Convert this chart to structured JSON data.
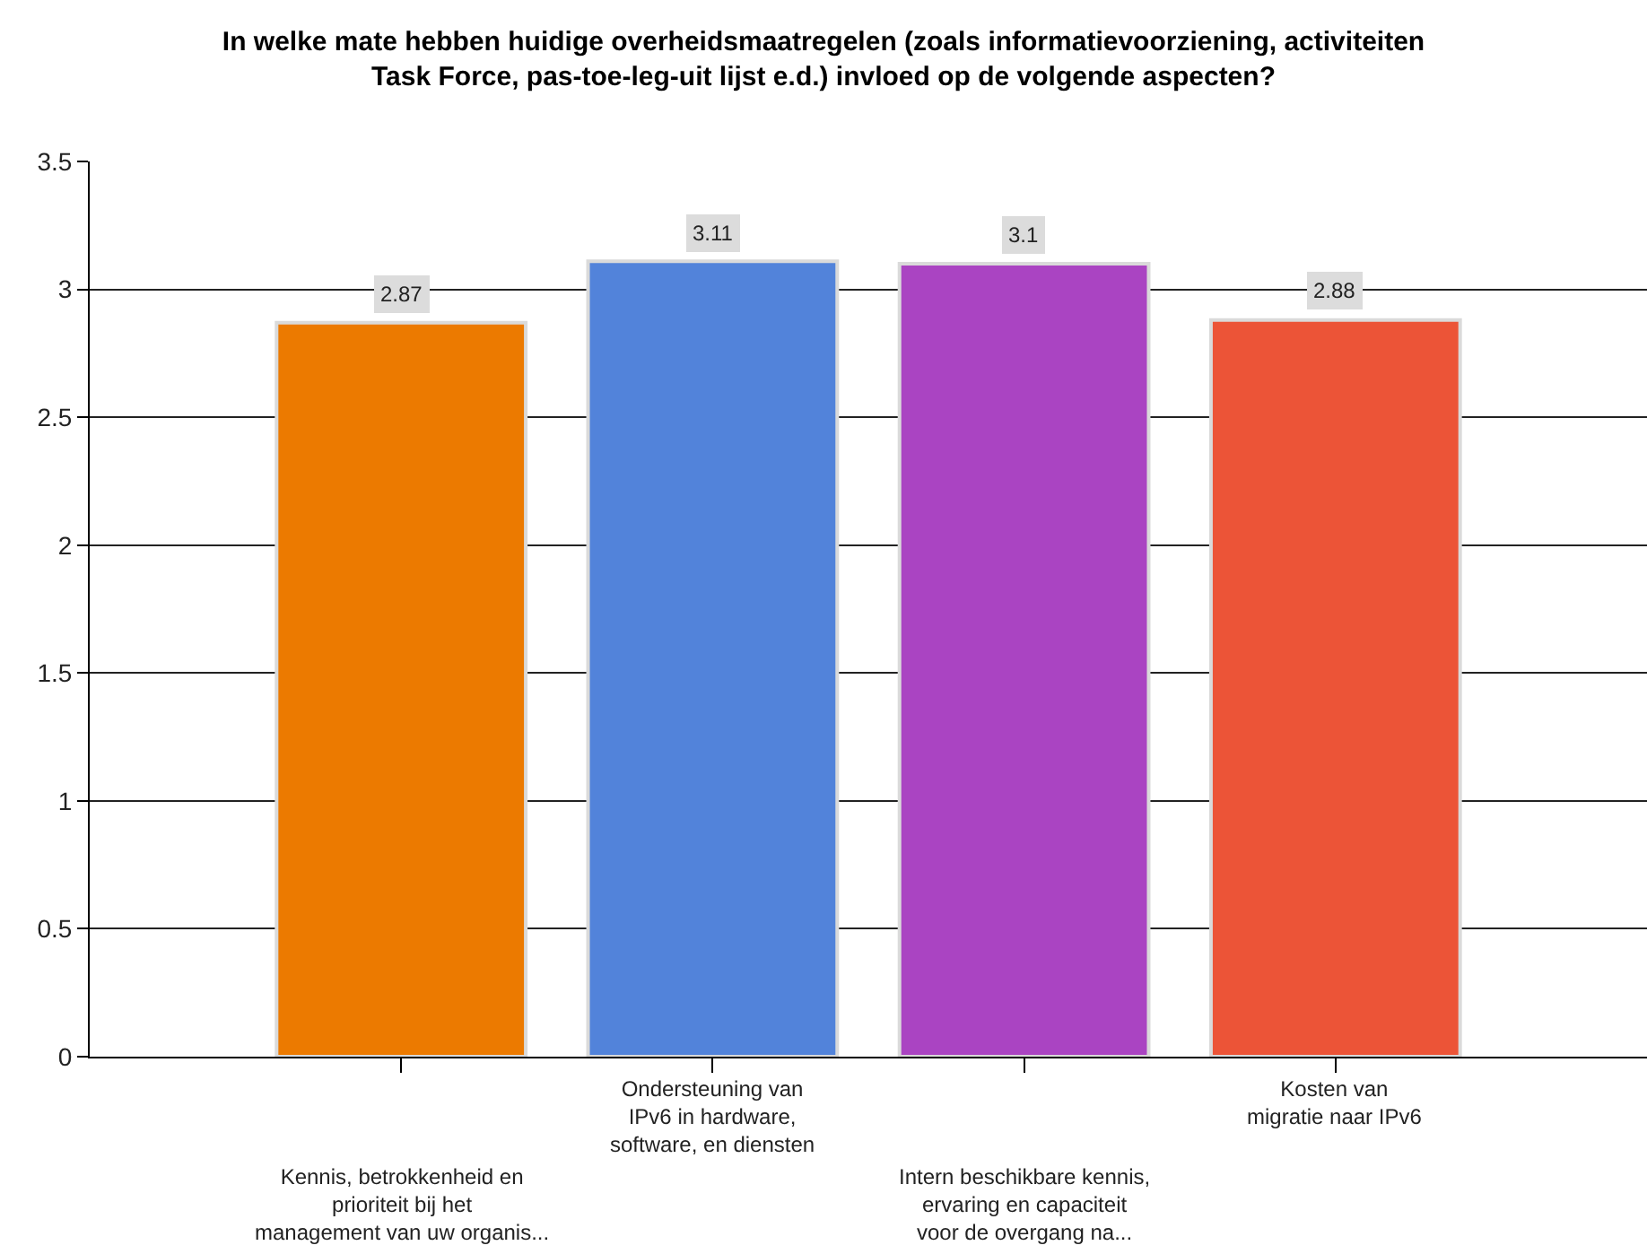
{
  "chart_data": {
    "type": "bar",
    "title": "In welke mate hebben huidige overheidsmaatregelen (zoals informatievoorziening, activiteiten Task Force, pas-toe-leg-uit lijst e.d.) invloed op de volgende aspecten?",
    "categories": [
      "Kennis, betrokkenheid en prioriteit bij het management van uw organis...",
      "Ondersteuning van IPv6 in hardware, software, en diensten",
      "Intern beschikbare kennis, ervaring en capaciteit voor de overgang na...",
      "Kosten van migratie naar IPv6"
    ],
    "values": [
      2.87,
      3.11,
      3.1,
      2.88
    ],
    "colors": [
      "#ec7a00",
      "#5283da",
      "#aa44c2",
      "#ec5437"
    ],
    "ylim": [
      0,
      3.5
    ],
    "yticks": [
      0,
      0.5,
      1,
      1.5,
      2,
      2.5,
      3,
      3.5
    ],
    "grid": "y",
    "data_labels": true
  }
}
